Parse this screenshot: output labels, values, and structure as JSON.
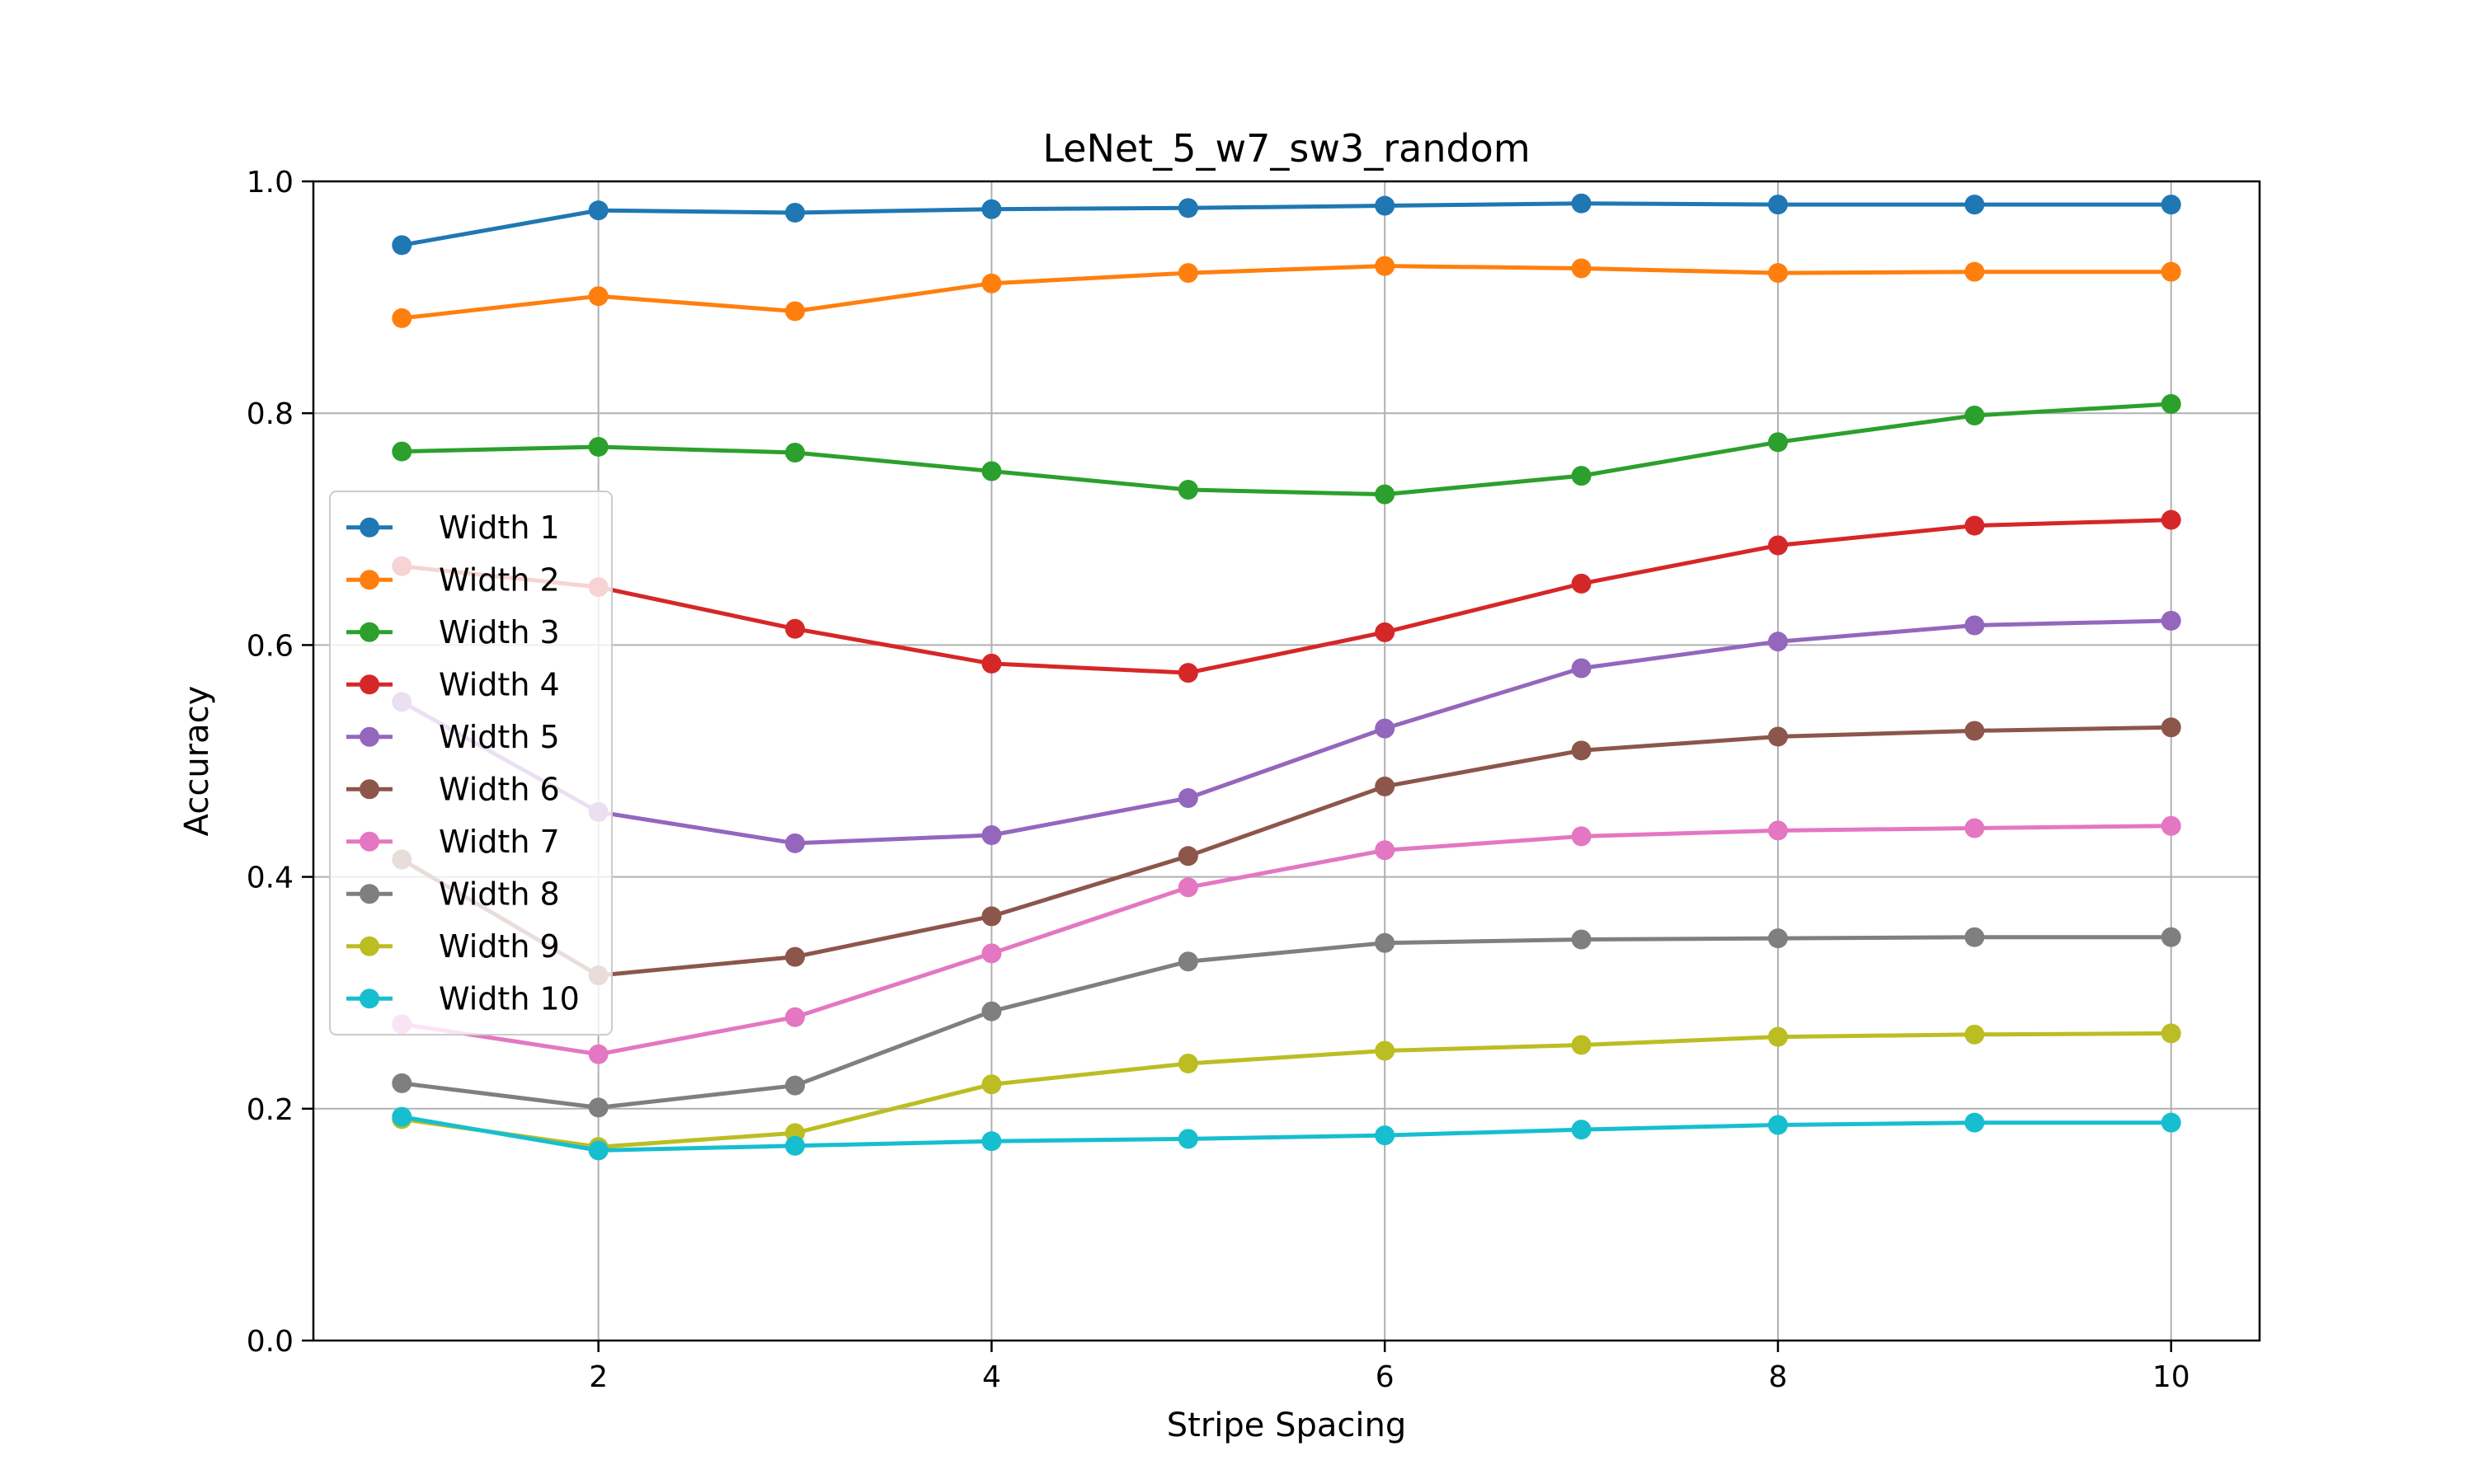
{
  "chart_data": {
    "type": "line",
    "title": "LeNet_5_w7_sw3_random",
    "xlabel": "Stripe Spacing",
    "ylabel": "Accuracy",
    "xlim": [
      0.55,
      10.45
    ],
    "ylim": [
      0.0,
      1.0
    ],
    "xticks": [
      2,
      4,
      6,
      8,
      10
    ],
    "xtick_labels": [
      "2",
      "4",
      "6",
      "8",
      "10"
    ],
    "yticks": [
      0.0,
      0.2,
      0.4,
      0.6,
      0.8,
      1.0
    ],
    "ytick_labels": [
      "0.0",
      "0.2",
      "0.4",
      "0.6",
      "0.8",
      "1.0"
    ],
    "grid": true,
    "legend_position": "center-left",
    "x": [
      1,
      2,
      3,
      4,
      5,
      6,
      7,
      8,
      9,
      10
    ],
    "series": [
      {
        "name": "Width 1",
        "color": "#1f77b4",
        "values": [
          0.945,
          0.975,
          0.973,
          0.976,
          0.977,
          0.979,
          0.981,
          0.98,
          0.98,
          0.98
        ]
      },
      {
        "name": "Width 2",
        "color": "#ff7f0e",
        "values": [
          0.882,
          0.901,
          0.888,
          0.912,
          0.921,
          0.927,
          0.925,
          0.921,
          0.922,
          0.922
        ]
      },
      {
        "name": "Width 3",
        "color": "#2ca02c",
        "values": [
          0.767,
          0.771,
          0.766,
          0.75,
          0.734,
          0.73,
          0.746,
          0.775,
          0.798,
          0.808
        ]
      },
      {
        "name": "Width 4",
        "color": "#d62728",
        "values": [
          0.668,
          0.65,
          0.614,
          0.584,
          0.576,
          0.611,
          0.653,
          0.686,
          0.703,
          0.708
        ]
      },
      {
        "name": "Width 5",
        "color": "#9467bd",
        "values": [
          0.551,
          0.456,
          0.429,
          0.436,
          0.468,
          0.528,
          0.58,
          0.603,
          0.617,
          0.621
        ]
      },
      {
        "name": "Width 6",
        "color": "#8c564b",
        "values": [
          0.415,
          0.315,
          0.331,
          0.366,
          0.418,
          0.478,
          0.509,
          0.521,
          0.526,
          0.529
        ]
      },
      {
        "name": "Width 7",
        "color": "#e377c2",
        "values": [
          0.273,
          0.247,
          0.279,
          0.334,
          0.391,
          0.423,
          0.435,
          0.44,
          0.442,
          0.444
        ]
      },
      {
        "name": "Width 8",
        "color": "#7f7f7f",
        "values": [
          0.222,
          0.201,
          0.22,
          0.284,
          0.327,
          0.343,
          0.346,
          0.347,
          0.348,
          0.348
        ]
      },
      {
        "name": "Width 9",
        "color": "#bcbd22",
        "values": [
          0.191,
          0.167,
          0.179,
          0.221,
          0.239,
          0.25,
          0.255,
          0.262,
          0.264,
          0.265
        ]
      },
      {
        "name": "Width 10",
        "color": "#17becf",
        "values": [
          0.193,
          0.164,
          0.168,
          0.172,
          0.174,
          0.177,
          0.182,
          0.186,
          0.188,
          0.188
        ]
      }
    ]
  }
}
